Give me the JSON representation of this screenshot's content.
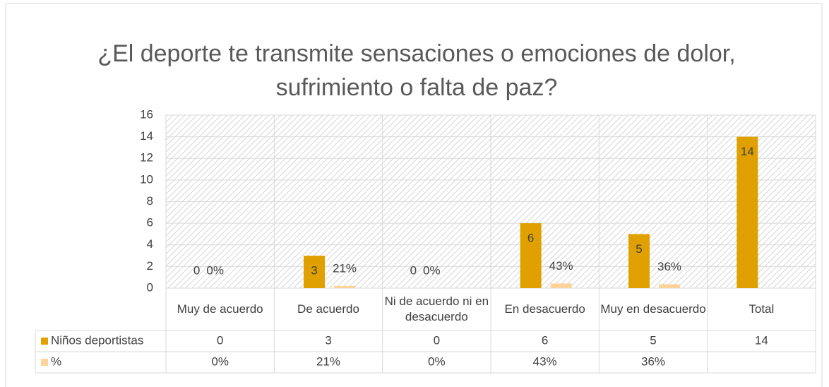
{
  "chart_data": {
    "type": "bar",
    "title": "¿El deporte te transmite sensaciones o emociones de dolor, sufrimiento o falta de paz?",
    "categories": [
      "Muy de acuerdo",
      "De acuerdo",
      "Ni de acuerdo ni en desacuerdo",
      "En desacuerdo",
      "Muy en desacuerdo",
      "Total"
    ],
    "series": [
      {
        "name": "Niños deportistas",
        "color": "#e0a100",
        "values": [
          0,
          3,
          0,
          6,
          5,
          14
        ]
      },
      {
        "name": "%",
        "color": "#fdd39a",
        "values": [
          0,
          0.21,
          0,
          0.43,
          0.36,
          null
        ],
        "value_labels": [
          "0%",
          "21%",
          "0%",
          "43%",
          "36%",
          null
        ]
      }
    ],
    "ylim": [
      0,
      16
    ],
    "yticks": [
      0,
      2,
      4,
      6,
      8,
      10,
      12,
      14,
      16
    ],
    "grid": true,
    "data_table": true
  }
}
